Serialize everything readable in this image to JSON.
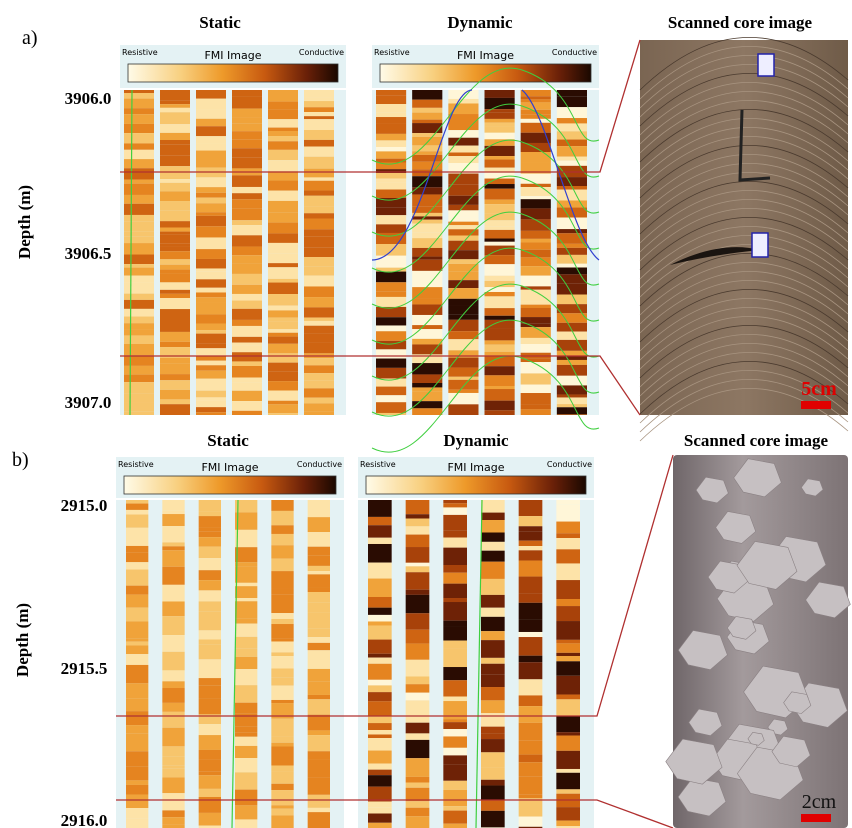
{
  "panels": [
    {
      "label": "a)",
      "depth_axis": {
        "title": "Depth (m)",
        "ticks": [
          "3906.0",
          "3906.5",
          "3907.0"
        ]
      },
      "images": [
        {
          "title": "Static",
          "colorbar": {
            "left": "Resistive",
            "center": "FMI Image",
            "right": "Conductive"
          }
        },
        {
          "title": "Dynamic",
          "colorbar": {
            "left": "Resistive",
            "center": "FMI Image",
            "right": "Conductive"
          }
        },
        {
          "title": "Scanned core image",
          "scale": "5cm"
        }
      ]
    },
    {
      "label": "b)",
      "depth_axis": {
        "title": "Depth (m)",
        "ticks": [
          "2915.0",
          "2915.5",
          "2916.0"
        ]
      },
      "images": [
        {
          "title": "Static",
          "colorbar": {
            "left": "Resistive",
            "center": "FMI Image",
            "right": "Conductive"
          }
        },
        {
          "title": "Dynamic",
          "colorbar": {
            "left": "Resistive",
            "center": "FMI Image",
            "right": "Conductive"
          }
        },
        {
          "title": "Scanned core image",
          "scale": "2cm"
        }
      ]
    }
  ]
}
